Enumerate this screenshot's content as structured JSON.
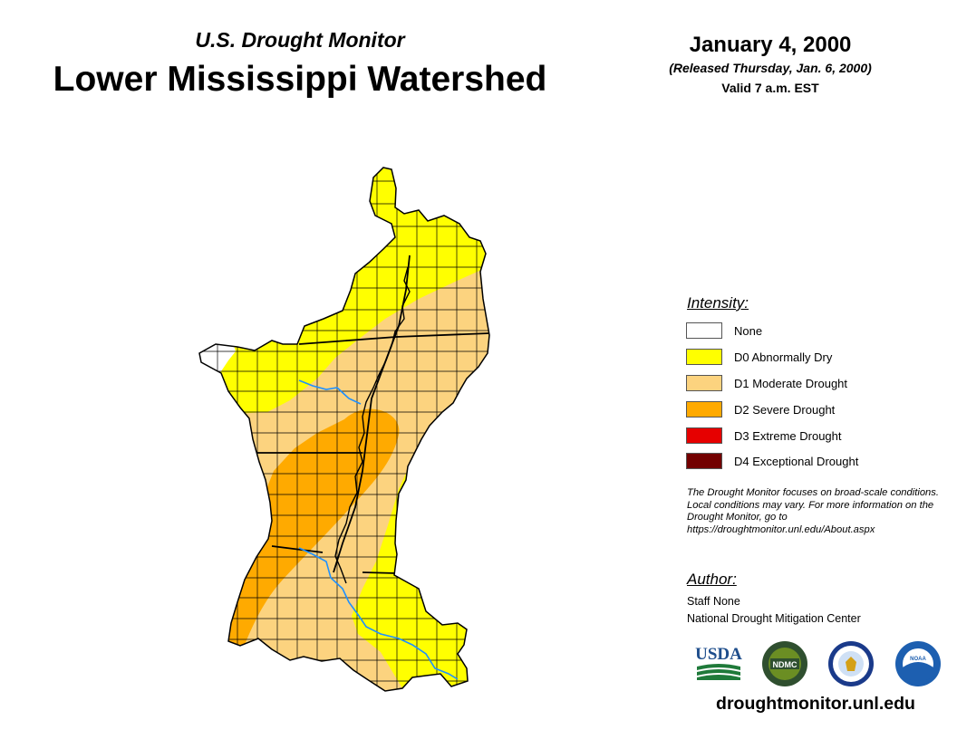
{
  "header": {
    "subtitle": "U.S. Drought Monitor",
    "title": "Lower Mississippi Watershed",
    "date": "January 4, 2000",
    "released": "(Released Thursday, Jan. 6, 2000)",
    "valid": "Valid 7 a.m. EST"
  },
  "legend": {
    "title": "Intensity:",
    "items": [
      {
        "label": "None",
        "color": "#ffffff"
      },
      {
        "label": "D0 Abnormally Dry",
        "color": "#ffff00"
      },
      {
        "label": "D1 Moderate Drought",
        "color": "#fcd37f"
      },
      {
        "label": "D2 Severe Drought",
        "color": "#ffaa00"
      },
      {
        "label": "D3 Extreme Drought",
        "color": "#e60000"
      },
      {
        "label": "D4 Exceptional Drought",
        "color": "#730000"
      }
    ]
  },
  "note": "The Drought Monitor focuses on broad-scale conditions. Local conditions may vary. For more information on the Drought Monitor, go to https://droughtmonitor.unl.edu/About.aspx",
  "author": {
    "title": "Author:",
    "name": "Staff None",
    "organization": "National Drought Mitigation Center"
  },
  "logos": {
    "usda": "USDA",
    "ndmc": "NDMC",
    "noaa": "NOAA"
  },
  "website": "droughtmonitor.unl.edu",
  "colors": {
    "river": "#1e90ff",
    "border": "#000000"
  }
}
